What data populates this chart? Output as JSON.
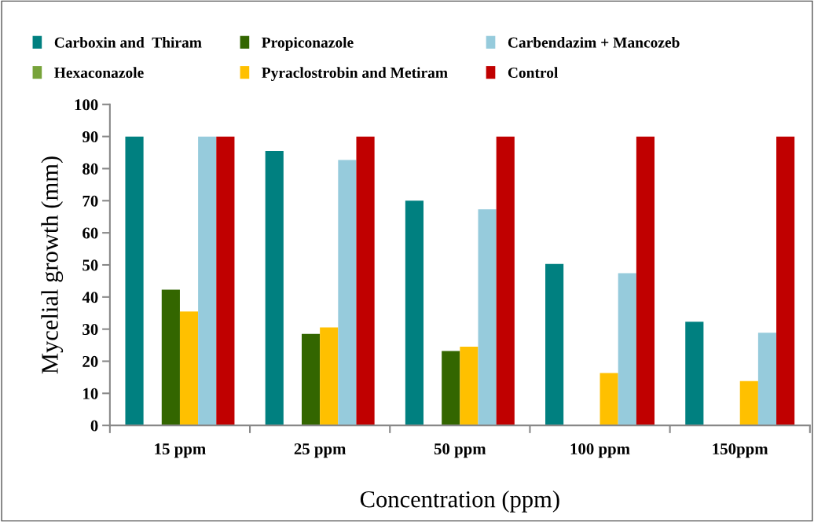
{
  "chart_data": {
    "type": "bar",
    "xlabel": "Concentration (ppm)",
    "ylabel": "Mycelial growth (mm)",
    "categories": [
      "15 ppm",
      "25 ppm",
      "50 ppm",
      "100 ppm",
      "150ppm"
    ],
    "series": [
      {
        "name": "Carboxin and  Thiram",
        "color": "#008080",
        "values": [
          90,
          85.5,
          70,
          50.3,
          32.3
        ]
      },
      {
        "name": "Hexaconazole",
        "color": "#77a33a",
        "values": [
          0,
          0,
          0,
          0,
          0
        ]
      },
      {
        "name": "Propiconazole",
        "color": "#336600",
        "values": [
          42.3,
          28.5,
          23.2,
          0,
          0
        ]
      },
      {
        "name": "Pyraclostrobin and Metiram",
        "color": "#ffc000",
        "values": [
          35.5,
          30.5,
          24.5,
          16.3,
          13.8
        ]
      },
      {
        "name": "Carbendazim + Mancozeb",
        "color": "#96cbdc",
        "values": [
          90,
          82.7,
          67.3,
          47.4,
          28.9
        ]
      },
      {
        "name": "Control",
        "color": "#c00000",
        "values": [
          90,
          90,
          90,
          90,
          90
        ]
      }
    ],
    "ylim": [
      0,
      100
    ],
    "yticks": [
      0,
      10,
      20,
      30,
      40,
      50,
      60,
      70,
      80,
      90,
      100
    ],
    "grid": false,
    "legend": "top"
  }
}
